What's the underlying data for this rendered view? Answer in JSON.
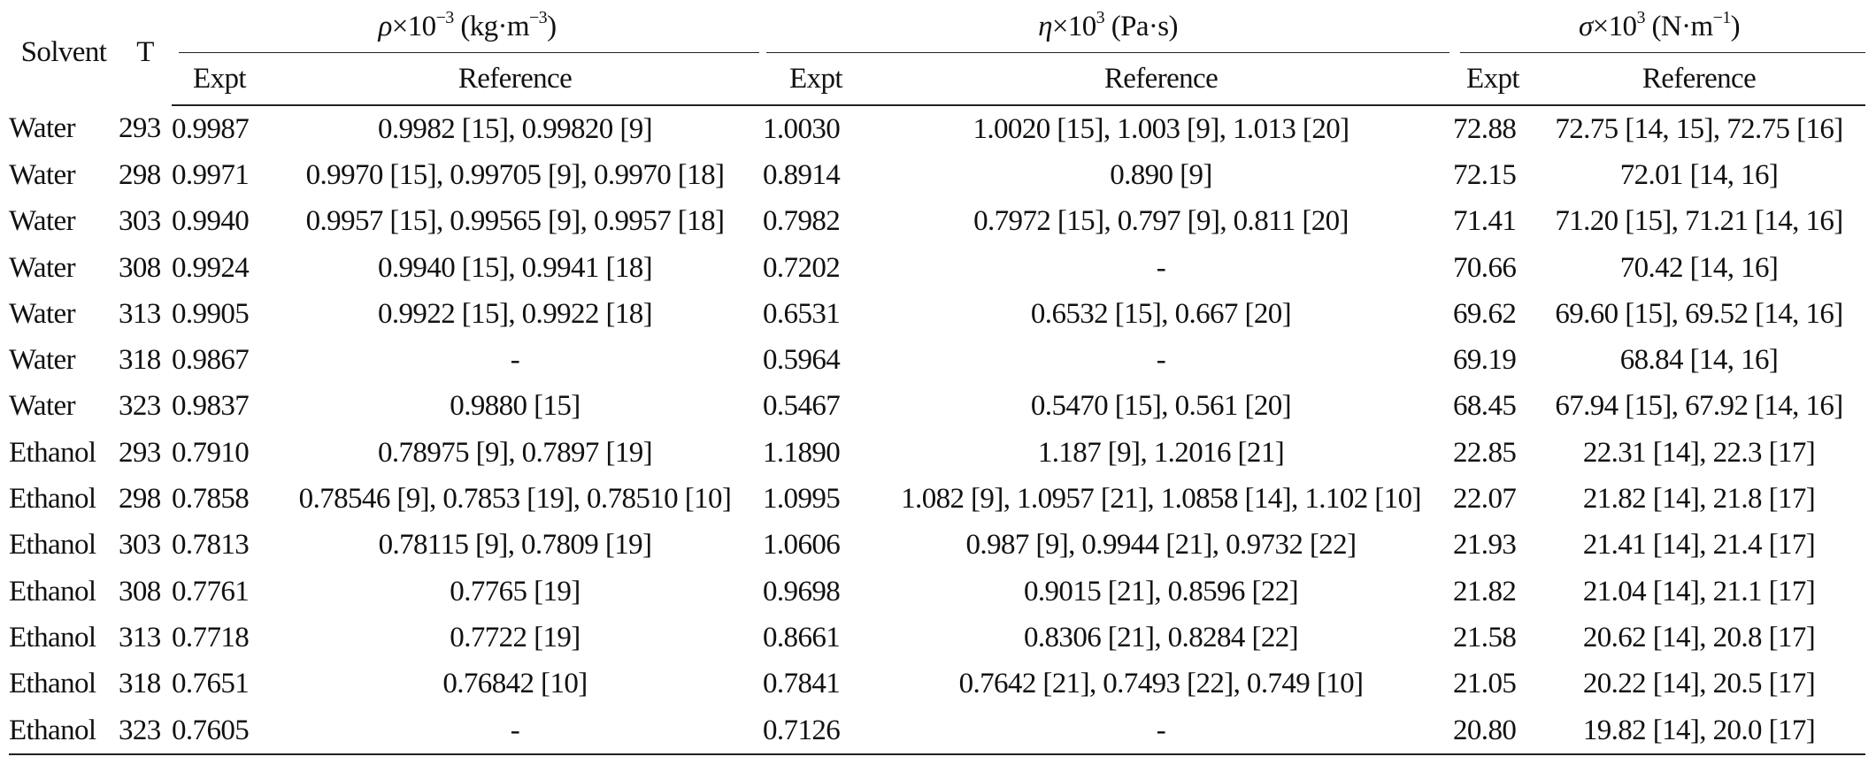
{
  "header": {
    "solvent": "Solvent",
    "temp": "T",
    "group_rho": {
      "sym": "ρ",
      "pre": "×10",
      "exp": "−3",
      "unit_a": " (kg·m",
      "unit_exp": "−3",
      "unit_b": ")"
    },
    "group_eta": {
      "sym": "η",
      "pre": "×10",
      "exp": "3",
      "unit": " (Pa·s)"
    },
    "group_sigma": {
      "sym": "σ",
      "pre": "×10",
      "exp": "3",
      "unit_a": " (N·m",
      "unit_exp": "−1",
      "unit_b": ")"
    },
    "expt": "Expt",
    "reference": "Reference"
  },
  "rows": [
    {
      "solvent": "Water",
      "T": "293",
      "rho_expt": "0.9987",
      "rho_ref": "0.9982 [15], 0.99820 [9]",
      "eta_expt": "1.0030",
      "eta_ref": "1.0020 [15], 1.003 [9], 1.013 [20]",
      "sig_expt": "72.88",
      "sig_ref": "72.75 [14, 15], 72.75 [16]"
    },
    {
      "solvent": "Water",
      "T": "298",
      "rho_expt": "0.9971",
      "rho_ref": "0.9970 [15], 0.99705 [9], 0.9970 [18]",
      "eta_expt": "0.8914",
      "eta_ref": "0.890 [9]",
      "sig_expt": "72.15",
      "sig_ref": "72.01 [14, 16]"
    },
    {
      "solvent": "Water",
      "T": "303",
      "rho_expt": "0.9940",
      "rho_ref": "0.9957 [15], 0.99565 [9], 0.9957 [18]",
      "eta_expt": "0.7982",
      "eta_ref": "0.7972 [15], 0.797 [9], 0.811 [20]",
      "sig_expt": "71.41",
      "sig_ref": "71.20 [15], 71.21 [14, 16]"
    },
    {
      "solvent": "Water",
      "T": "308",
      "rho_expt": "0.9924",
      "rho_ref": "0.9940 [15], 0.9941 [18]",
      "eta_expt": "0.7202",
      "eta_ref": "-",
      "sig_expt": "70.66",
      "sig_ref": "70.42 [14, 16]"
    },
    {
      "solvent": "Water",
      "T": "313",
      "rho_expt": "0.9905",
      "rho_ref": "0.9922 [15], 0.9922 [18]",
      "eta_expt": "0.6531",
      "eta_ref": "0.6532 [15], 0.667 [20]",
      "sig_expt": "69.62",
      "sig_ref": "69.60 [15], 69.52 [14, 16]"
    },
    {
      "solvent": "Water",
      "T": "318",
      "rho_expt": "0.9867",
      "rho_ref": "-",
      "eta_expt": "0.5964",
      "eta_ref": "-",
      "sig_expt": "69.19",
      "sig_ref": "68.84 [14, 16]"
    },
    {
      "solvent": "Water",
      "T": "323",
      "rho_expt": "0.9837",
      "rho_ref": "0.9880 [15]",
      "eta_expt": "0.5467",
      "eta_ref": "0.5470 [15], 0.561 [20]",
      "sig_expt": "68.45",
      "sig_ref": "67.94 [15], 67.92 [14, 16]"
    },
    {
      "solvent": "Ethanol",
      "T": "293",
      "rho_expt": "0.7910",
      "rho_ref": "0.78975 [9], 0.7897 [19]",
      "eta_expt": "1.1890",
      "eta_ref": "1.187 [9], 1.2016 [21]",
      "sig_expt": "22.85",
      "sig_ref": "22.31 [14], 22.3 [17]"
    },
    {
      "solvent": "Ethanol",
      "T": "298",
      "rho_expt": "0.7858",
      "rho_ref": "0.78546 [9], 0.7853 [19], 0.78510 [10]",
      "eta_expt": "1.0995",
      "eta_ref": "1.082 [9], 1.0957 [21], 1.0858 [14], 1.102 [10]",
      "sig_expt": "22.07",
      "sig_ref": "21.82 [14], 21.8 [17]"
    },
    {
      "solvent": "Ethanol",
      "T": "303",
      "rho_expt": "0.7813",
      "rho_ref": "0.78115 [9], 0.7809 [19]",
      "eta_expt": "1.0606",
      "eta_ref": "0.987 [9], 0.9944 [21], 0.9732 [22]",
      "sig_expt": "21.93",
      "sig_ref": "21.41 [14], 21.4 [17]"
    },
    {
      "solvent": "Ethanol",
      "T": "308",
      "rho_expt": "0.7761",
      "rho_ref": "0.7765 [19]",
      "eta_expt": "0.9698",
      "eta_ref": "0.9015 [21], 0.8596 [22]",
      "sig_expt": "21.82",
      "sig_ref": "21.04 [14], 21.1 [17]"
    },
    {
      "solvent": "Ethanol",
      "T": "313",
      "rho_expt": "0.7718",
      "rho_ref": "0.7722 [19]",
      "eta_expt": "0.8661",
      "eta_ref": "0.8306 [21], 0.8284 [22]",
      "sig_expt": "21.58",
      "sig_ref": "20.62 [14], 20.8 [17]"
    },
    {
      "solvent": "Ethanol",
      "T": "318",
      "rho_expt": "0.7651",
      "rho_ref": "0.76842 [10]",
      "eta_expt": "0.7841",
      "eta_ref": "0.7642 [21], 0.7493 [22], 0.749 [10]",
      "sig_expt": "21.05",
      "sig_ref": "20.22 [14], 20.5 [17]"
    },
    {
      "solvent": "Ethanol",
      "T": "323",
      "rho_expt": "0.7605",
      "rho_ref": "-",
      "eta_expt": "0.7126",
      "eta_ref": "-",
      "sig_expt": "20.80",
      "sig_ref": "19.82 [14], 20.0 [17]"
    }
  ]
}
